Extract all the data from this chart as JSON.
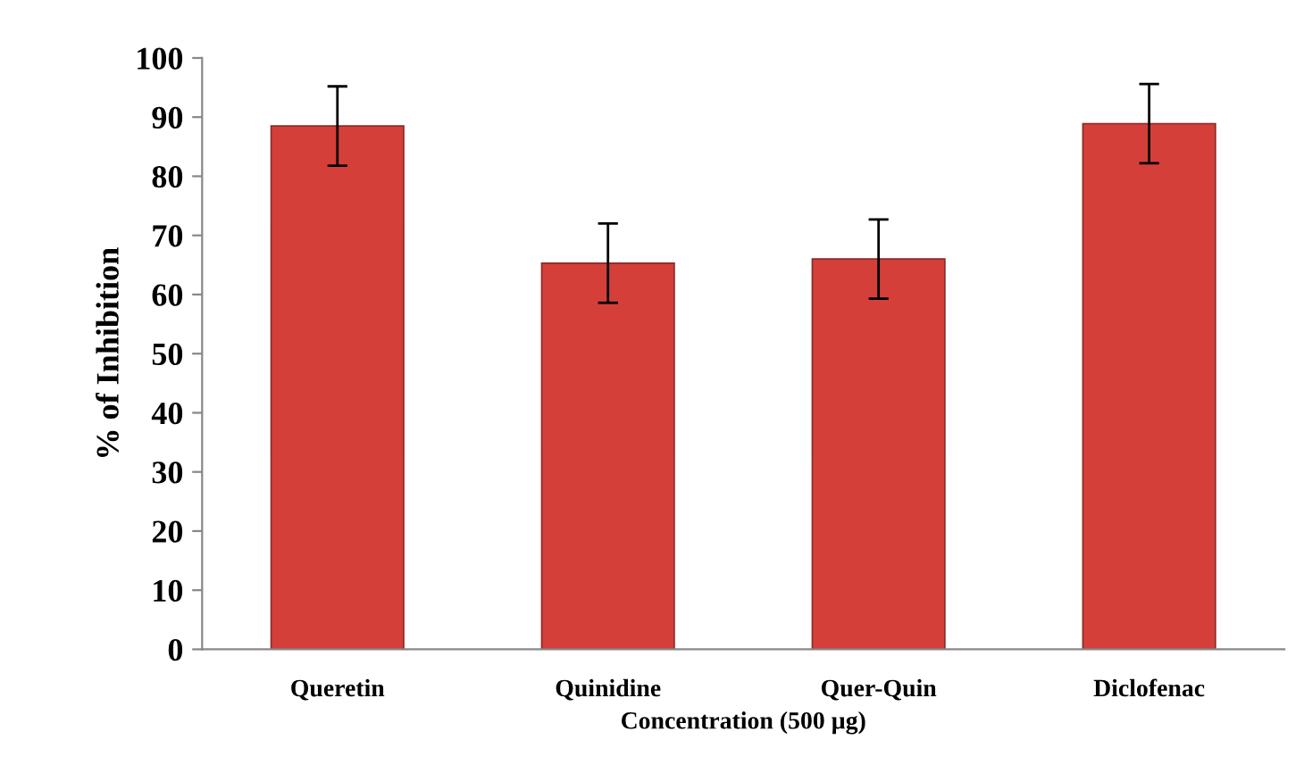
{
  "chart_data": {
    "type": "bar",
    "xlabel": "Concentration (500 µg)",
    "ylabel": "% of Inhibition",
    "categories": [
      "Queretin",
      "Quinidine",
      "Quer-Quin",
      "Diclofenac"
    ],
    "values": [
      88.5,
      65.3,
      66.0,
      88.9
    ],
    "errors": [
      6.7,
      6.7,
      6.7,
      6.7
    ],
    "color": "#d43f3a",
    "ylim": [
      0,
      100
    ],
    "yticks": [
      0,
      10,
      20,
      30,
      40,
      50,
      60,
      70,
      80,
      90,
      100
    ],
    "grid": false,
    "legend": false
  }
}
